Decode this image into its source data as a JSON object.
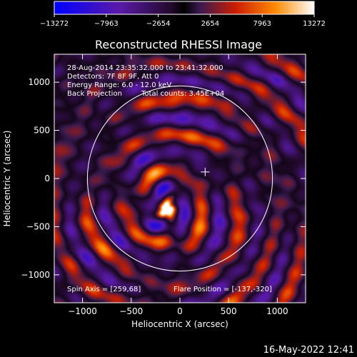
{
  "chart_data": {
    "type": "heatmap",
    "title": "Reconstructed RHESSI Image",
    "xlabel": "Heliocentric X (arcsec)",
    "ylabel": "Heliocentric Y (arcsec)",
    "xlim": [
      -1290,
      1290
    ],
    "ylim": [
      -1290,
      1290
    ],
    "x_ticks": [
      -1000,
      -500,
      0,
      500,
      1000
    ],
    "y_ticks": [
      -1000,
      -500,
      0,
      500,
      1000
    ],
    "x_tick_labels": [
      "−1000",
      "−500",
      "0",
      "500",
      "1000"
    ],
    "y_tick_labels": [
      "−1000",
      "−500",
      "0",
      "500",
      "1000"
    ],
    "colorbar": {
      "min": -13272,
      "max": 13272,
      "tick_values": [
        -13272,
        -7963,
        -2654,
        2654,
        7963,
        13272
      ],
      "tick_labels": [
        "−13272",
        "−7963",
        "−2654",
        "2654",
        "7963",
        "13272"
      ]
    },
    "annotations": {
      "time_range": "28-Aug-2014 23:35:32.000 to 23:41:32.000",
      "detectors": "Detectors: 7F 8F 9F, Att 0",
      "energy_range": "Energy Range: 6.0 - 12.0 keV",
      "method": "Back Projection",
      "total_counts": "Total counts: 3.45E+04",
      "spin_axis": "Spin Axis = [259,68]",
      "flare_position": "Flare Position = [-137,-320]"
    },
    "solar_radius_arcsec": 950,
    "spin_axis_xy": [
      259,
      68
    ],
    "flare_position_xy": [
      -137,
      -320
    ],
    "peak_value": 13272
  },
  "footer": {
    "timestamp": "16-May-2022 12:41"
  },
  "colors": {
    "background": "#000000",
    "foreground": "#ffffff",
    "colorbar_stops": [
      "#0000ff",
      "#5a1aa8",
      "#200a28",
      "#000000",
      "#3a1a50",
      "#cc1e00",
      "#ff8a00",
      "#ffffff"
    ]
  }
}
